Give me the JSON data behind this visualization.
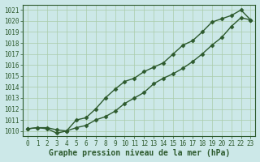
{
  "xlabel": "Graphe pression niveau de la mer (hPa)",
  "bg_color": "#cce8e8",
  "grid_color": "#aaccaa",
  "line_color": "#2d5a2d",
  "ylim": [
    1009.5,
    1021.5
  ],
  "xlim": [
    -0.5,
    23.5
  ],
  "yticks": [
    1010,
    1011,
    1012,
    1013,
    1014,
    1015,
    1016,
    1017,
    1018,
    1019,
    1020,
    1021
  ],
  "xticks": [
    0,
    1,
    2,
    3,
    4,
    5,
    6,
    7,
    8,
    9,
    10,
    11,
    12,
    13,
    14,
    15,
    16,
    17,
    18,
    19,
    20,
    21,
    22,
    23
  ],
  "line1_x": [
    0,
    1,
    2,
    3,
    4,
    5,
    6,
    7,
    8,
    9,
    10,
    11,
    12,
    13,
    14,
    15,
    16,
    17,
    18,
    19,
    20,
    21,
    22,
    23
  ],
  "line1_y": [
    1010.2,
    1010.3,
    1010.3,
    1010.1,
    1010.0,
    1010.3,
    1010.5,
    1011.0,
    1011.3,
    1011.8,
    1012.5,
    1013.0,
    1013.5,
    1014.3,
    1014.8,
    1015.2,
    1015.7,
    1016.3,
    1017.0,
    1017.8,
    1018.5,
    1019.5,
    1020.3,
    1020.1
  ],
  "line2_x": [
    0,
    1,
    2,
    3,
    4,
    5,
    6,
    7,
    8,
    9,
    10,
    11,
    12,
    13,
    14,
    15,
    16,
    17,
    18,
    19,
    20,
    21,
    22,
    23
  ],
  "line2_y": [
    1010.2,
    1010.3,
    1010.2,
    1009.8,
    1010.0,
    1011.0,
    1011.2,
    1012.0,
    1013.0,
    1013.8,
    1014.5,
    1014.8,
    1015.4,
    1015.8,
    1016.2,
    1017.0,
    1017.8,
    1018.2,
    1019.0,
    1019.9,
    1020.2,
    1020.5,
    1021.0,
    1020.1
  ],
  "marker": "D",
  "markersize": 2.5,
  "linewidth": 1.0,
  "tick_fontsize": 5.5,
  "xlabel_fontsize": 7,
  "tick_color": "#2d5a2d",
  "xlabel_color": "#2d5a2d"
}
